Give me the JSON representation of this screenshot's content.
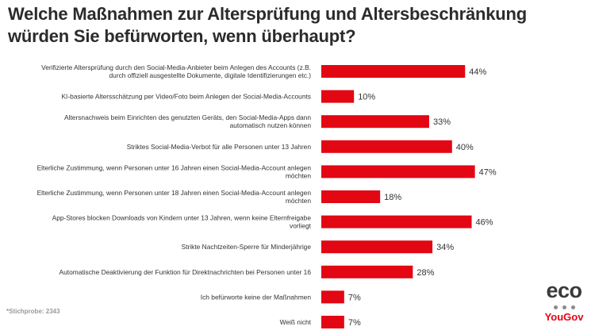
{
  "chart_data": {
    "type": "bar",
    "orientation": "horizontal",
    "title": "Welche Maßnahmen zur Altersprüfung und Altersbeschränkung würden Sie befürworten, wenn überhaupt?",
    "unit": "%",
    "bar_color": "#e30613",
    "categories": [
      [
        "Verifizierte Altersprüfung durch den Social-Media-Anbieter beim Anlegen des Accounts (z.B.",
        "durch offiziell ausgestellte Dokumente, digitale Identifizierungen etc.)"
      ],
      [
        "KI-basierte Altersschätzung per Video/Foto beim Anlegen der Social-Media-Accounts"
      ],
      [
        "Altersnachweis beim Einrichten des genutzten Geräts, den Social-Media-Apps dann",
        "automatisch nutzen können"
      ],
      [
        "Striktes Social-Media-Verbot für alle Personen unter 13 Jahren"
      ],
      [
        "Elterliche Zustimmung, wenn Personen unter 16 Jahren einen Social-Media-Account anlegen",
        "möchten"
      ],
      [
        "Elterliche Zustimmung, wenn Personen unter 18 Jahren einen Social-Media-Account anlegen",
        "möchten"
      ],
      [
        "App-Stores blocken Downloads von Kindern unter 13 Jahren, wenn keine Elternfreigabe",
        "vorliegt"
      ],
      [
        "Strikte Nachtzeiten-Sperre für Minderjährige"
      ],
      [
        "Automatische Deaktivierung der Funktion für Direktnachrichten bei Personen unter 16"
      ],
      [
        "Ich befürworte keine der Maßnahmen"
      ],
      [
        "Weiß nicht"
      ]
    ],
    "values": [
      44,
      10,
      33,
      40,
      47,
      18,
      46,
      34,
      28,
      7,
      7
    ],
    "value_labels": [
      "44%",
      "10%",
      "33%",
      "40%",
      "47%",
      "18%",
      "46%",
      "34%",
      "28%",
      "7%",
      "7%"
    ]
  },
  "footnote": "*Stichprobe: 2343",
  "logo": {
    "primary": "eco",
    "secondary": "YouGov"
  }
}
